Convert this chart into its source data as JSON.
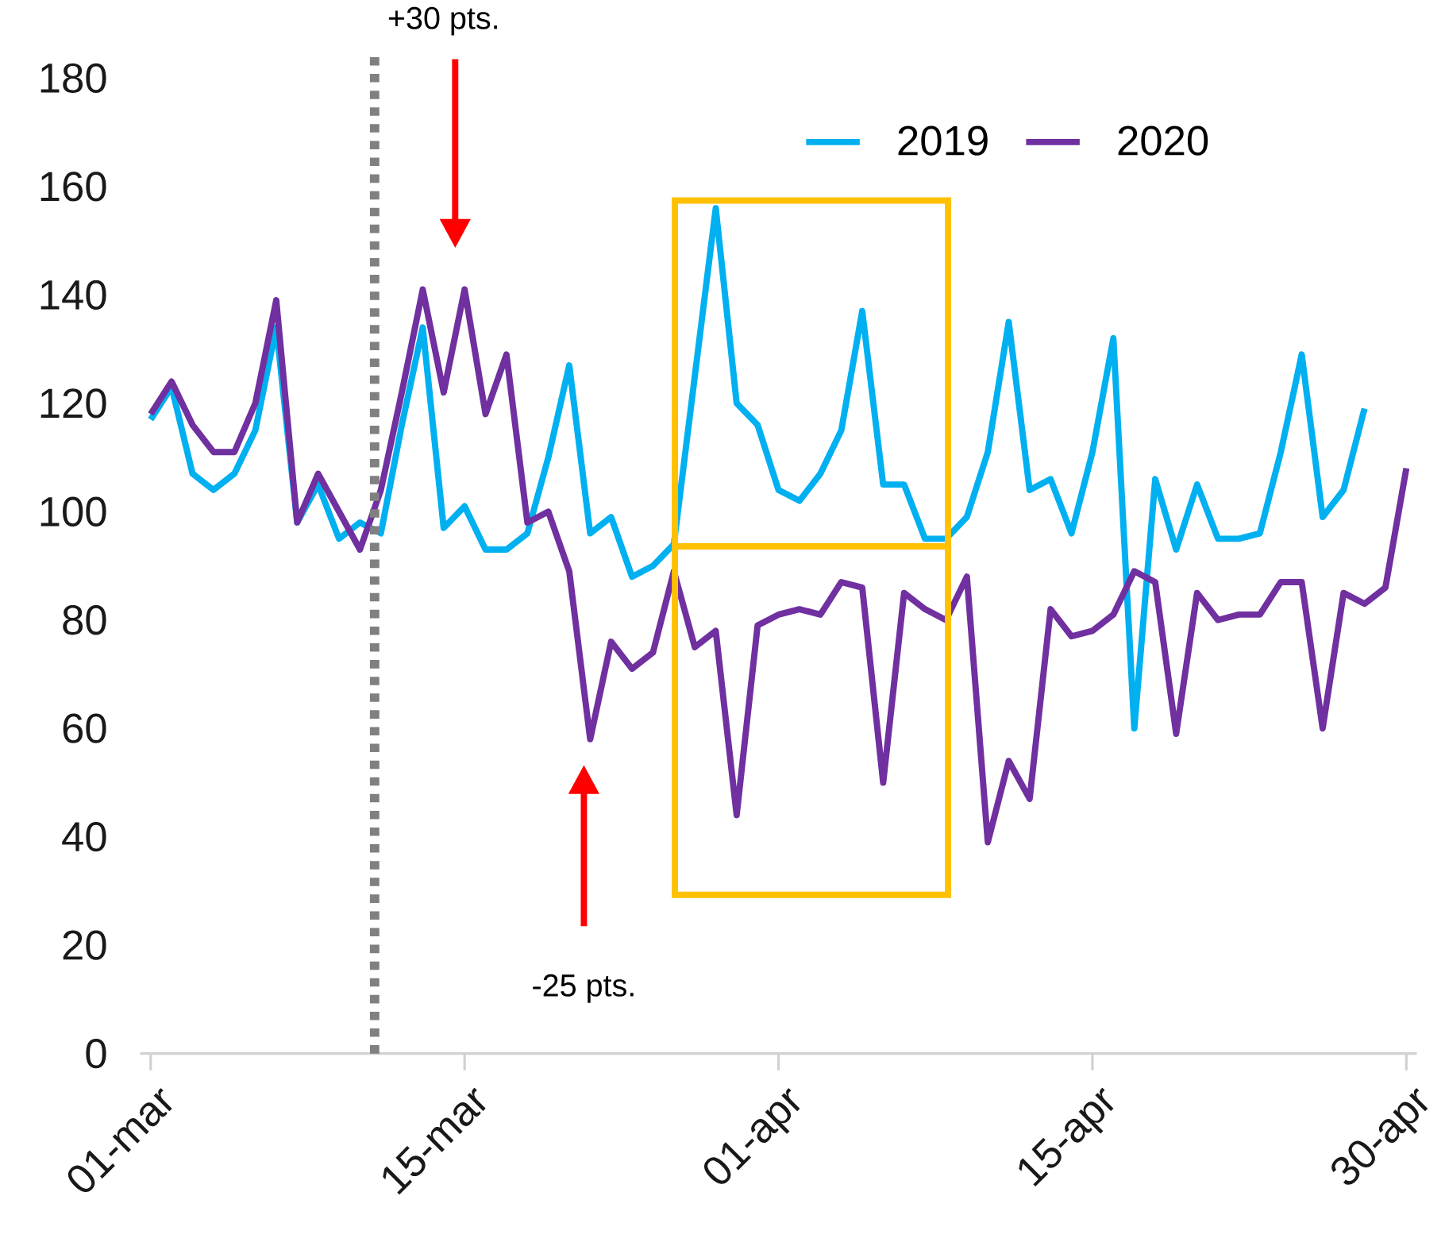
{
  "chart_data": {
    "type": "line",
    "categories": [
      "01-mar",
      null,
      null,
      null,
      null,
      null,
      null,
      null,
      null,
      null,
      null,
      null,
      null,
      null,
      null,
      "15-mar",
      null,
      null,
      null,
      null,
      null,
      null,
      null,
      null,
      null,
      null,
      null,
      null,
      null,
      null,
      "01-apr",
      null,
      null,
      null,
      null,
      null,
      null,
      null,
      null,
      null,
      null,
      null,
      null,
      null,
      null,
      "15-apr",
      null,
      null,
      null,
      null,
      null,
      null,
      null,
      null,
      null,
      null,
      null,
      null,
      null,
      null,
      "30-apr"
    ],
    "series": [
      {
        "name": "2019",
        "color": "#00b0f0",
        "values": [
          117,
          123,
          107,
          104,
          107,
          115,
          134,
          98,
          105,
          95,
          98,
          96,
          116,
          134,
          97,
          101,
          93,
          93,
          96,
          110,
          127,
          96,
          99,
          88,
          90,
          94,
          125,
          156,
          120,
          116,
          104,
          102,
          107,
          115,
          137,
          105,
          105,
          95,
          95,
          99,
          111,
          135,
          104,
          106,
          96,
          111,
          132,
          60,
          106,
          93,
          105,
          95,
          95,
          96,
          111,
          129,
          99,
          104,
          119,
          null,
          null
        ]
      },
      {
        "name": "2020",
        "color": "#7030a0",
        "values": [
          118,
          124,
          116,
          111,
          111,
          120,
          139,
          98,
          107,
          100,
          93,
          104,
          122,
          141,
          122,
          141,
          118,
          129,
          98,
          100,
          89,
          58,
          76,
          71,
          74,
          89,
          75,
          78,
          44,
          79,
          81,
          82,
          81,
          87,
          86,
          50,
          85,
          82,
          80,
          88,
          39,
          54,
          47,
          82,
          77,
          78,
          81,
          89,
          87,
          59,
          85,
          80,
          81,
          81,
          87,
          87,
          60,
          85,
          83,
          86,
          108
        ]
      }
    ],
    "ylim": [
      0,
      180
    ],
    "yticks": [
      0,
      20,
      40,
      60,
      80,
      100,
      120,
      140,
      160,
      180
    ],
    "legend": "top",
    "grid": false,
    "marker": "none",
    "line_style": "solid",
    "annotations": [
      "+30 pts.",
      "-25 pts."
    ]
  }
}
